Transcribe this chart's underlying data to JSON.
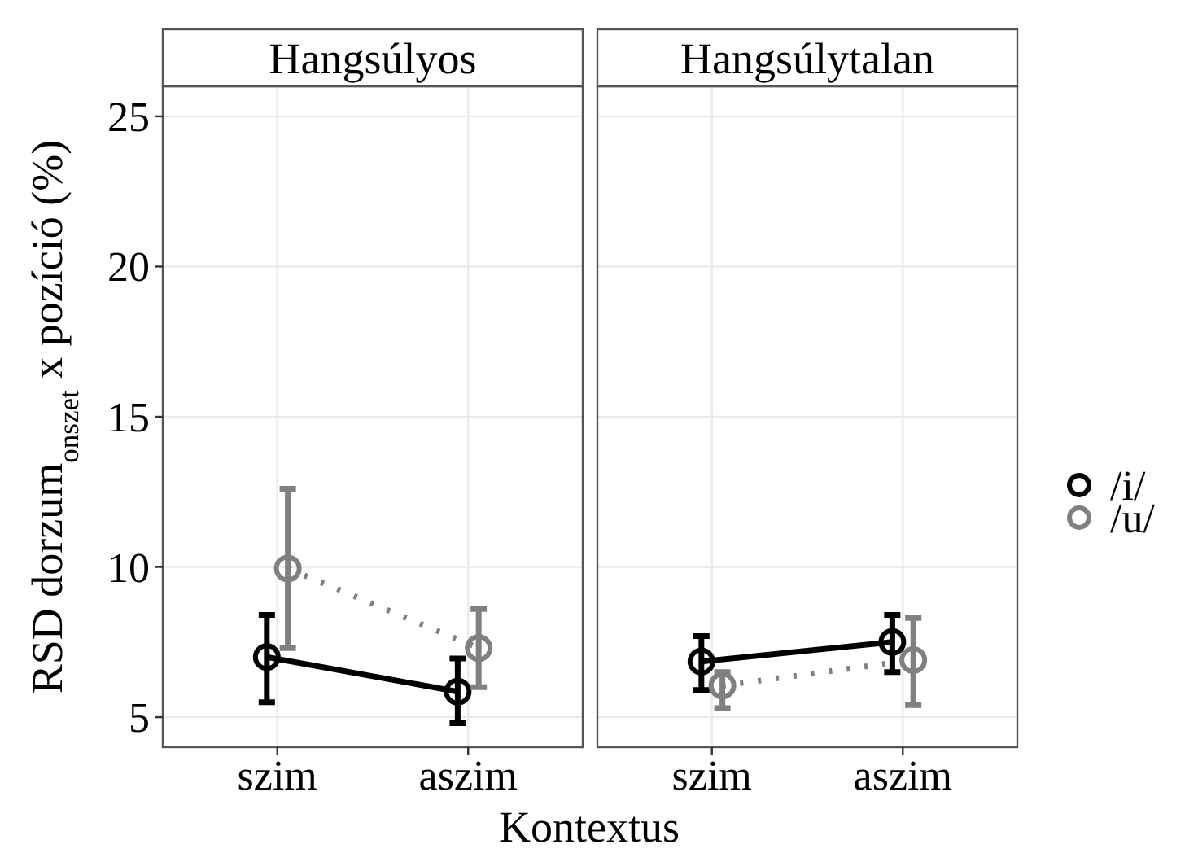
{
  "chart_data": [
    {
      "type": "line",
      "title": "Hangsúlyos",
      "xlabel": "Kontextus",
      "ylabel": "RSD dorzum$_{onszet}$ x pozíció (%)",
      "categories": [
        "szim",
        "aszim"
      ],
      "ylim": [
        4,
        26
      ],
      "yticks": [
        5,
        10,
        15,
        20,
        25
      ],
      "grid": true,
      "marker": "circle",
      "series": [
        {
          "color": "#000000",
          "line_style": "solid",
          "values": [
            7.0,
            5.85
          ],
          "errors": [
            [
              5.5,
              8.4
            ],
            [
              4.8,
              6.95
            ]
          ]
        },
        {
          "color": "#808080",
          "line_style": "dotted",
          "values": [
            9.95,
            7.3
          ],
          "errors": [
            [
              7.3,
              12.6
            ],
            [
              6.0,
              8.6
            ]
          ]
        }
      ]
    },
    {
      "type": "line",
      "title": "Hangsúlytalan",
      "categories": [
        "szim",
        "aszim"
      ],
      "ylim": [
        4,
        26
      ],
      "yticks": [
        5,
        10,
        15,
        20,
        25
      ],
      "tick_labels": "x",
      "grid": true,
      "legend": "right",
      "marker": "circle",
      "series": [
        {
          "name": "/i/",
          "color": "#000000",
          "line_style": "solid",
          "values": [
            6.85,
            7.5
          ],
          "errors": [
            [
              5.9,
              7.7
            ],
            [
              6.5,
              8.4
            ]
          ]
        },
        {
          "name": "/u/",
          "color": "#808080",
          "line_style": "dotted",
          "values": [
            6.05,
            6.9
          ],
          "errors": [
            [
              5.3,
              6.5
            ],
            [
              5.4,
              8.3
            ]
          ]
        }
      ]
    }
  ]
}
